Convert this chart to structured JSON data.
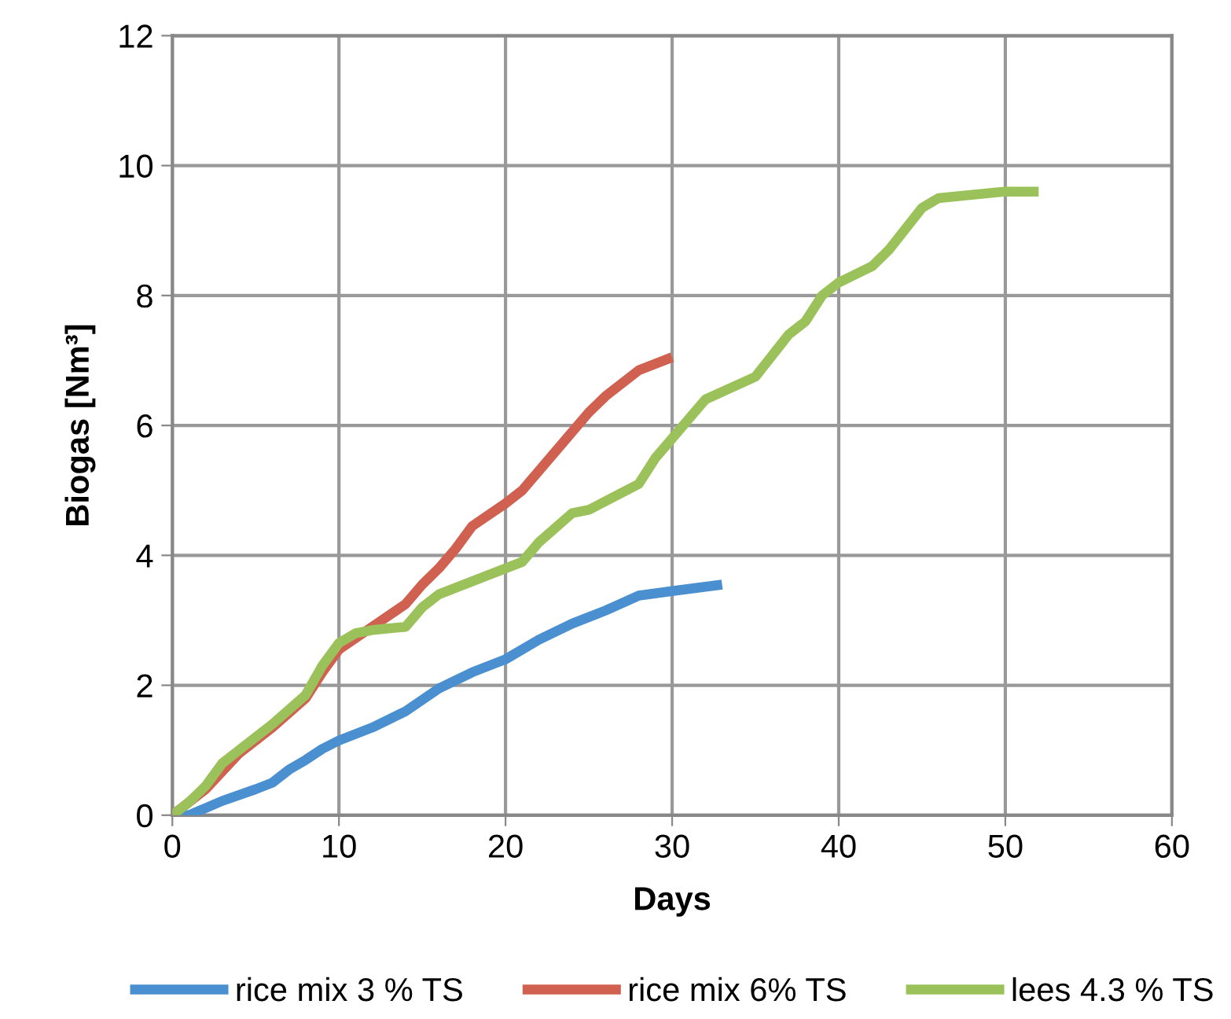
{
  "chart_data": {
    "type": "line",
    "xlabel": "Days",
    "ylabel": "Biogas [Nm³]",
    "xlim": [
      0,
      60
    ],
    "xticks": [
      0,
      10,
      20,
      30,
      40,
      50,
      60
    ],
    "ylim": [
      0,
      12
    ],
    "yticks": [
      0,
      2,
      4,
      6,
      8,
      10,
      12
    ],
    "grid": true,
    "legend": "bottom",
    "marker": "none",
    "line_style": "solid",
    "series": [
      {
        "name": "rice mix 3 % TS",
        "color": "#4a8fd0",
        "x": [
          0,
          1,
          3,
          5,
          6,
          7,
          8,
          9,
          10,
          12,
          14,
          16,
          18,
          20,
          22,
          24,
          26,
          28,
          30,
          33
        ],
        "values": [
          0,
          0,
          0.22,
          0.4,
          0.5,
          0.7,
          0.85,
          1.02,
          1.15,
          1.35,
          1.6,
          1.95,
          2.2,
          2.4,
          2.7,
          2.95,
          3.15,
          3.38,
          3.45,
          3.55
        ]
      },
      {
        "name": "rice mix 6% TS",
        "color": "#d0604f",
        "x": [
          0,
          2,
          4,
          6,
          8,
          9,
          10,
          12,
          14,
          15,
          16,
          17,
          18,
          20,
          21,
          23,
          25,
          26,
          28,
          30
        ],
        "values": [
          0,
          0.4,
          0.95,
          1.35,
          1.8,
          2.2,
          2.55,
          2.9,
          3.25,
          3.55,
          3.8,
          4.1,
          4.45,
          4.8,
          5.0,
          5.6,
          6.2,
          6.45,
          6.85,
          7.05
        ]
      },
      {
        "name": "lees 4.3 % TS",
        "color": "#9bc25a",
        "x": [
          0,
          1,
          2,
          3,
          4,
          6,
          8,
          9,
          10,
          11,
          12,
          14,
          15,
          16,
          18,
          20,
          21,
          22,
          24,
          25,
          28,
          29,
          30,
          32,
          35,
          37,
          38,
          39,
          40,
          42,
          43,
          45,
          46,
          50,
          52
        ],
        "values": [
          0,
          0.2,
          0.45,
          0.8,
          1.0,
          1.4,
          1.85,
          2.3,
          2.65,
          2.8,
          2.85,
          2.9,
          3.2,
          3.4,
          3.6,
          3.8,
          3.9,
          4.2,
          4.65,
          4.7,
          5.1,
          5.5,
          5.8,
          6.4,
          6.75,
          7.4,
          7.6,
          8.0,
          8.2,
          8.45,
          8.7,
          9.35,
          9.5,
          9.6,
          9.6
        ]
      }
    ]
  }
}
